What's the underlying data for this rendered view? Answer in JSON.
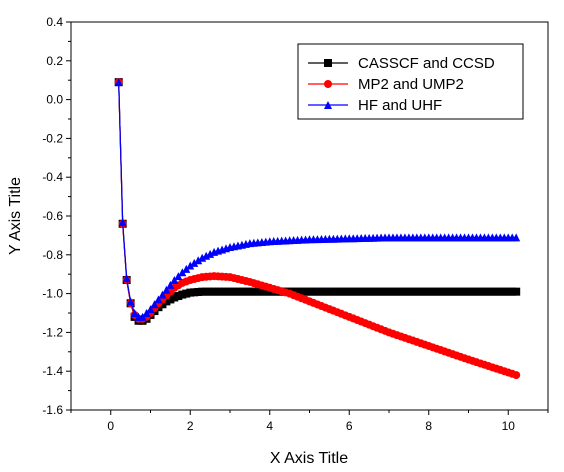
{
  "chart_data": {
    "type": "line",
    "xlabel": "X Axis Title",
    "ylabel": "Y Axis Title",
    "xlim": [
      -1,
      11
    ],
    "ylim": [
      -1.6,
      0.4
    ],
    "xticks": [
      0,
      2,
      4,
      6,
      8,
      10
    ],
    "yticks": [
      0.4,
      0.2,
      0.0,
      -0.2,
      -0.4,
      -0.6,
      -0.8,
      -1.0,
      -1.2,
      -1.4,
      -1.6
    ],
    "ytick_labels": [
      "0.4",
      "0.2",
      "0.0",
      "-0.2",
      "-0.4",
      "-0.6",
      "-0.8",
      "-1.0",
      "-1.2",
      "-1.4",
      "-1.6"
    ],
    "grid": false,
    "legend_position": "top-right",
    "series": [
      {
        "name": "CASSCF and CCSD",
        "color": "#000000",
        "marker": "square",
        "x": [
          0.2,
          0.3,
          0.4,
          0.5,
          0.6,
          0.7,
          0.8,
          0.9,
          1.0,
          1.2,
          1.4,
          1.6,
          1.8,
          2.0,
          2.3,
          2.6,
          3.0,
          3.5,
          4.0,
          5.0,
          6.0,
          7.0,
          8.0,
          9.0,
          10.2
        ],
        "y": [
          0.09,
          -0.64,
          -0.93,
          -1.05,
          -1.12,
          -1.14,
          -1.14,
          -1.13,
          -1.11,
          -1.07,
          -1.04,
          -1.02,
          -1.005,
          -0.995,
          -0.99,
          -0.99,
          -0.99,
          -0.99,
          -0.99,
          -0.99,
          -0.99,
          -0.99,
          -0.99,
          -0.99,
          -0.99
        ]
      },
      {
        "name": "MP2 and UMP2",
        "color": "#ff0000",
        "marker": "circle",
        "x": [
          0.2,
          0.3,
          0.4,
          0.5,
          0.6,
          0.7,
          0.8,
          0.9,
          1.0,
          1.2,
          1.4,
          1.6,
          1.8,
          2.0,
          2.3,
          2.6,
          3.0,
          3.5,
          4.0,
          4.5,
          5.0,
          6.0,
          7.0,
          8.0,
          9.0,
          10.2
        ],
        "y": [
          0.09,
          -0.64,
          -0.93,
          -1.05,
          -1.11,
          -1.13,
          -1.13,
          -1.12,
          -1.1,
          -1.05,
          -1.01,
          -0.97,
          -0.945,
          -0.93,
          -0.915,
          -0.91,
          -0.915,
          -0.94,
          -0.97,
          -1.0,
          -1.04,
          -1.12,
          -1.2,
          -1.27,
          -1.34,
          -1.42
        ]
      },
      {
        "name": "HF and UHF",
        "color": "#0000ff",
        "marker": "triangle",
        "x": [
          0.2,
          0.3,
          0.4,
          0.5,
          0.6,
          0.7,
          0.8,
          0.9,
          1.0,
          1.2,
          1.4,
          1.6,
          1.8,
          2.0,
          2.3,
          2.6,
          3.0,
          3.5,
          4.0,
          4.5,
          5.0,
          6.0,
          7.0,
          8.0,
          9.0,
          10.2
        ],
        "y": [
          0.09,
          -0.63,
          -0.92,
          -1.04,
          -1.1,
          -1.12,
          -1.12,
          -1.1,
          -1.08,
          -1.03,
          -0.98,
          -0.93,
          -0.89,
          -0.855,
          -0.815,
          -0.785,
          -0.76,
          -0.74,
          -0.73,
          -0.725,
          -0.72,
          -0.715,
          -0.71,
          -0.71,
          -0.71,
          -0.71
        ]
      }
    ]
  }
}
